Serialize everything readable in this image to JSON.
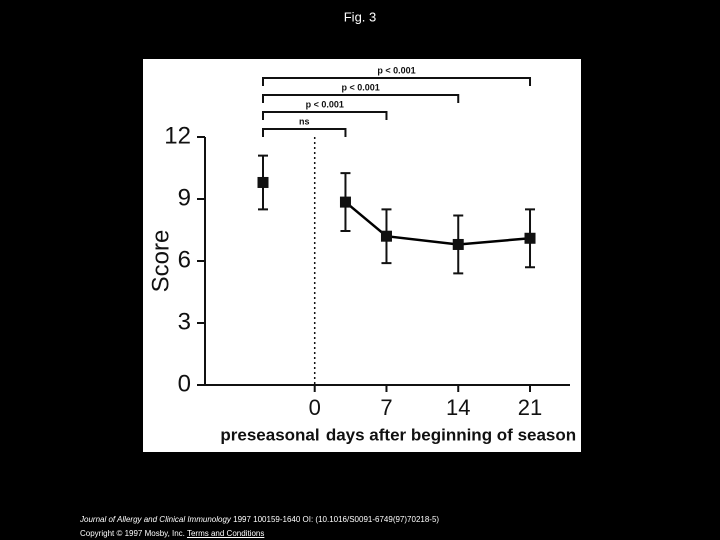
{
  "slide_title": "Fig. 3",
  "chart_data": {
    "type": "line",
    "x": [
      3,
      7,
      14,
      21
    ],
    "series": [
      {
        "values": [
          8.85,
          7.2,
          6.8,
          7.1
        ],
        "errors": [
          1.4,
          1.3,
          1.4,
          1.4
        ],
        "color": "#000000"
      }
    ],
    "preseasonal": {
      "label": "preseasonal",
      "value": 9.8,
      "error": 1.3
    },
    "xlabel": "days after beginning of season",
    "ylabel": "Score",
    "xlim": [
      -10.7,
      24.9
    ],
    "ylim": [
      0,
      12
    ],
    "xticks": [
      0,
      7,
      14,
      21
    ],
    "yticks": [
      0,
      3,
      6,
      9,
      12
    ],
    "annotations": [
      {
        "text": "p < 0.001",
        "to": 21
      },
      {
        "text": "p < 0.001",
        "to": 14
      },
      {
        "text": "p < 0.001",
        "to": 7
      },
      {
        "text": "ns",
        "to": 3
      }
    ]
  },
  "footer": {
    "journal": "Journal of Allergy and Clinical Immunology",
    "citation": "1997 100159-1640 OI: (10.1016/S0091-6749(97)70218-5)",
    "copyright": "Copyright © 1997 Mosby, Inc.",
    "link": "Terms and Conditions"
  }
}
